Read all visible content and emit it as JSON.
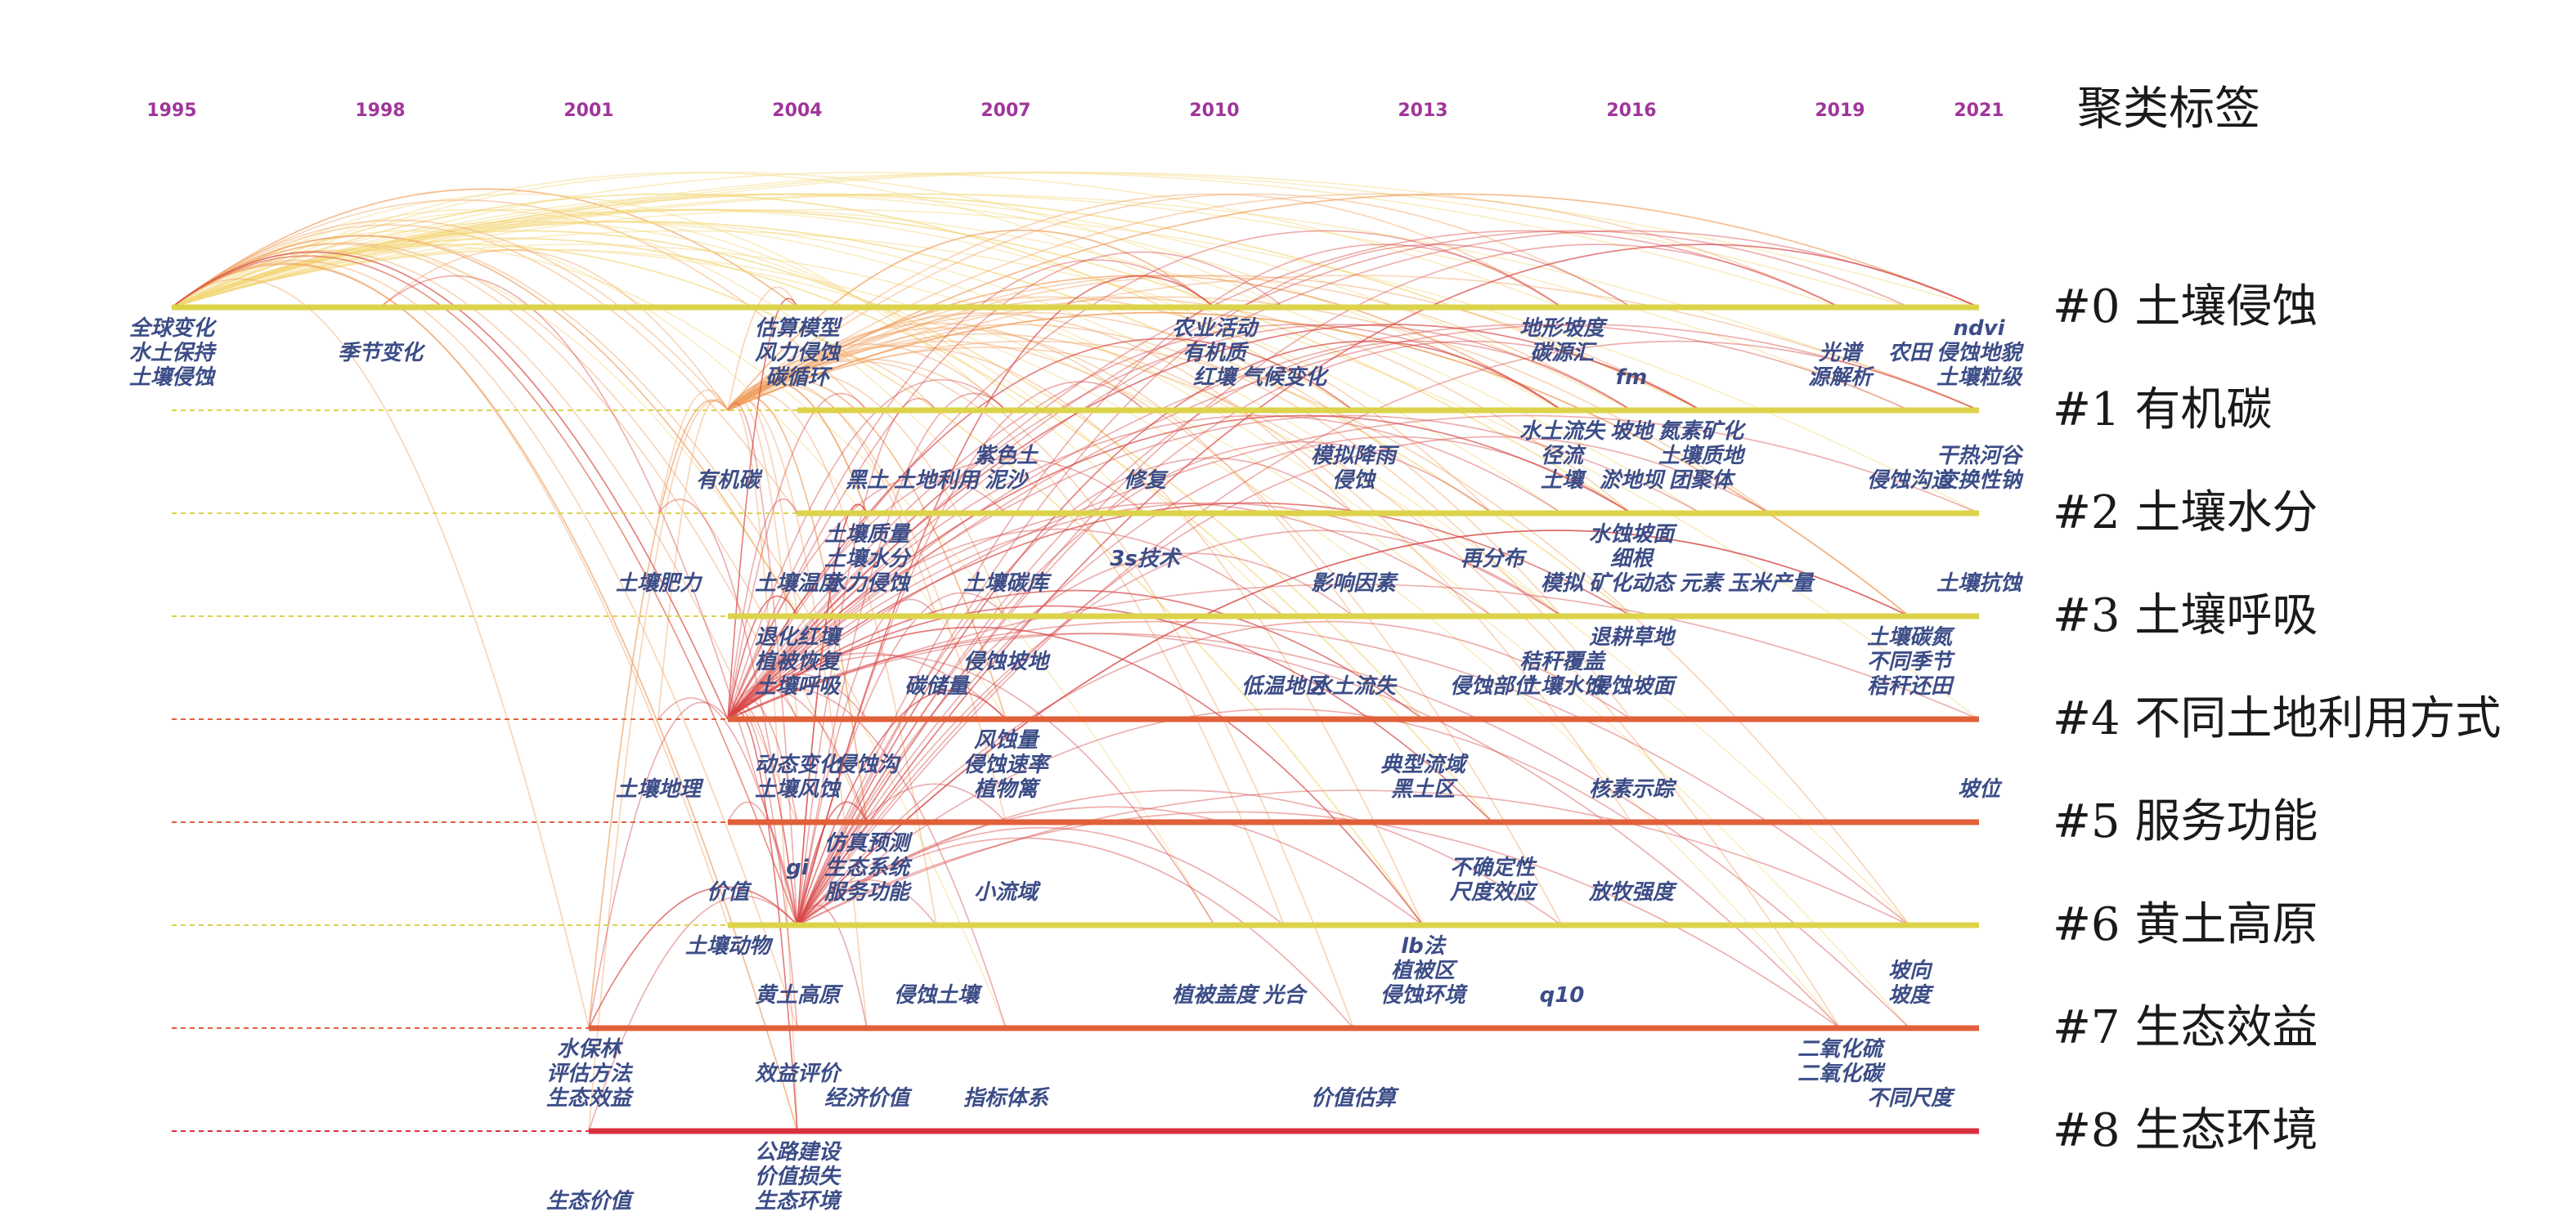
{
  "header": {
    "title": "聚类标签"
  },
  "years": [
    "1995",
    "1998",
    "2001",
    "2004",
    "2007",
    "2010",
    "2013",
    "2016",
    "2019",
    "2021"
  ],
  "colors": {
    "year_text": "#a0359b",
    "keyword_text": "#3c4d87",
    "yellow_band": "#dcd34a",
    "orange_band": "#e0603a",
    "red_band": "#d8313e",
    "arc_warm": "#f0a060",
    "arc_red": "#d84848",
    "arc_yellow": "#f3d77a"
  },
  "clusters": [
    {
      "label": "#0 土壤侵蚀",
      "color": "yellow",
      "start": "1995",
      "end": "2021",
      "keywords": [
        {
          "text": "全球变化",
          "year": "1995",
          "row": 0
        },
        {
          "text": "水土保持",
          "year": "1995",
          "row": 1
        },
        {
          "text": "土壤侵蚀",
          "year": "1995",
          "row": 2
        },
        {
          "text": "季节变化",
          "year": "1998",
          "row": 1
        },
        {
          "text": "估算模型",
          "year": "2004",
          "row": 0
        },
        {
          "text": "风力侵蚀",
          "year": "2004",
          "row": 1
        },
        {
          "text": "碳循环",
          "year": "2004",
          "row": 2
        },
        {
          "text": "农业活动",
          "year": "2010",
          "row": 0
        },
        {
          "text": "有机质",
          "year": "2010",
          "row": 1
        },
        {
          "text": "红壤",
          "year": "2010",
          "row": 2
        },
        {
          "text": "气候变化",
          "year": "2011",
          "row": 2
        },
        {
          "text": "地形坡度",
          "year": "2015",
          "row": 0
        },
        {
          "text": "碳源汇",
          "year": "2015",
          "row": 1
        },
        {
          "text": "fm",
          "year": "2016",
          "row": 2
        },
        {
          "text": "光谱",
          "year": "2019",
          "row": 1
        },
        {
          "text": "源解析",
          "year": "2019",
          "row": 2
        },
        {
          "text": "农田",
          "year": "2020",
          "row": 1
        },
        {
          "text": "ndvi",
          "year": "2021",
          "row": 0
        },
        {
          "text": "侵蚀地貌",
          "year": "2021",
          "row": 1
        },
        {
          "text": "土壤粒级",
          "year": "2021",
          "row": 2
        }
      ]
    },
    {
      "label": "#1 有机碳",
      "color": "yellow",
      "start": "2004",
      "end": "2021",
      "keywords": [
        {
          "text": "水土流失",
          "year": "2015",
          "row": 0
        },
        {
          "text": "坡地",
          "year": "2016",
          "row": 0
        },
        {
          "text": "氮素矿化",
          "year": "2017",
          "row": 0
        },
        {
          "text": "径流",
          "year": "2015",
          "row": 1
        },
        {
          "text": "土壤质地",
          "year": "2017",
          "row": 1
        },
        {
          "text": "紫色土",
          "year": "2007",
          "row": 1
        },
        {
          "text": "模拟降雨",
          "year": "2012",
          "row": 1
        },
        {
          "text": "有机碳",
          "year": "2003",
          "row": 2
        },
        {
          "text": "黑土",
          "year": "2005",
          "row": 2
        },
        {
          "text": "土地利用",
          "year": "2006",
          "row": 2
        },
        {
          "text": "泥沙",
          "year": "2007",
          "row": 2
        },
        {
          "text": "修复",
          "year": "2009",
          "row": 2
        },
        {
          "text": "侵蚀",
          "year": "2012",
          "row": 2
        },
        {
          "text": "土壤",
          "year": "2015",
          "row": 2
        },
        {
          "text": "淤地坝",
          "year": "2016",
          "row": 2
        },
        {
          "text": "团聚体",
          "year": "2017",
          "row": 2
        },
        {
          "text": "侵蚀沟道",
          "year": "2020",
          "row": 2
        },
        {
          "text": "干热河谷",
          "year": "2021",
          "row": 1
        },
        {
          "text": "交换性钠",
          "year": "2021",
          "row": 2
        }
      ]
    },
    {
      "label": "#2 土壤水分",
      "color": "yellow",
      "start": "2004",
      "end": "2021",
      "keywords": [
        {
          "text": "土壤质量",
          "year": "2005",
          "row": 0
        },
        {
          "text": "水蚀坡面",
          "year": "2016",
          "row": 0
        },
        {
          "text": "土壤水分",
          "year": "2005",
          "row": 1
        },
        {
          "text": "3s技术",
          "year": "2009",
          "row": 1
        },
        {
          "text": "再分布",
          "year": "2014",
          "row": 1
        },
        {
          "text": "细根",
          "year": "2016",
          "row": 1
        },
        {
          "text": "土壤肥力",
          "year": "2002",
          "row": 2
        },
        {
          "text": "土壤温度",
          "year": "2004",
          "row": 2
        },
        {
          "text": "水力侵蚀",
          "year": "2005",
          "row": 2
        },
        {
          "text": "土壤碳库",
          "year": "2007",
          "row": 2
        },
        {
          "text": "影响因素",
          "year": "2012",
          "row": 2
        },
        {
          "text": "模拟",
          "year": "2015",
          "row": 2
        },
        {
          "text": "矿化动态",
          "year": "2016",
          "row": 2
        },
        {
          "text": "元素",
          "year": "2017",
          "row": 2
        },
        {
          "text": "玉米产量",
          "year": "2018",
          "row": 2
        },
        {
          "text": "土壤抗蚀",
          "year": "2021",
          "row": 2
        }
      ]
    },
    {
      "label": "#3 土壤呼吸",
      "color": "yellow",
      "start": "2003",
      "end": "2021",
      "keywords": [
        {
          "text": "退化红壤",
          "year": "2004",
          "row": 0
        },
        {
          "text": "退耕草地",
          "year": "2016",
          "row": 0
        },
        {
          "text": "土壤碳氮",
          "year": "2020",
          "row": 0
        },
        {
          "text": "植被恢复",
          "year": "2004",
          "row": 1
        },
        {
          "text": "侵蚀坡地",
          "year": "2007",
          "row": 1
        },
        {
          "text": "秸秆覆盖",
          "year": "2015",
          "row": 1
        },
        {
          "text": "不同季节",
          "year": "2020",
          "row": 1
        },
        {
          "text": "土壤呼吸",
          "year": "2004",
          "row": 2
        },
        {
          "text": "碳储量",
          "year": "2006",
          "row": 2
        },
        {
          "text": "低温地区",
          "year": "2011",
          "row": 2
        },
        {
          "text": "水土流失",
          "year": "2012",
          "row": 2
        },
        {
          "text": "侵蚀部位",
          "year": "2014",
          "row": 2
        },
        {
          "text": "土壤水蚀",
          "year": "2015",
          "row": 2
        },
        {
          "text": "侵蚀坡面",
          "year": "2016",
          "row": 2
        },
        {
          "text": "秸秆还田",
          "year": "2020",
          "row": 2
        }
      ]
    },
    {
      "label": "#4 不同土地利用方式",
      "color": "orange",
      "start": "2003",
      "end": "2021",
      "keywords": [
        {
          "text": "风蚀量",
          "year": "2007",
          "row": 0
        },
        {
          "text": "动态变化",
          "year": "2004",
          "row": 1
        },
        {
          "text": "侵蚀沟",
          "year": "2005",
          "row": 1
        },
        {
          "text": "侵蚀速率",
          "year": "2007",
          "row": 1
        },
        {
          "text": "典型流域",
          "year": "2013",
          "row": 1
        },
        {
          "text": "土壤地理",
          "year": "2002",
          "row": 2
        },
        {
          "text": "土壤风蚀",
          "year": "2004",
          "row": 2
        },
        {
          "text": "植物篱",
          "year": "2007",
          "row": 2
        },
        {
          "text": "黑土区",
          "year": "2013",
          "row": 2
        },
        {
          "text": "核素示踪",
          "year": "2016",
          "row": 2
        },
        {
          "text": "坡位",
          "year": "2021",
          "row": 2
        }
      ]
    },
    {
      "label": "#5 服务功能",
      "color": "orange",
      "start": "2003",
      "end": "2021",
      "keywords": [
        {
          "text": "仿真预测",
          "year": "2005",
          "row": 0
        },
        {
          "text": "gi",
          "year": "2004",
          "row": 1
        },
        {
          "text": "生态系统",
          "year": "2005",
          "row": 1
        },
        {
          "text": "不确定性",
          "year": "2014",
          "row": 1
        },
        {
          "text": "价值",
          "year": "2003",
          "row": 2
        },
        {
          "text": "服务功能",
          "year": "2005",
          "row": 2
        },
        {
          "text": "小流域",
          "year": "2007",
          "row": 2
        },
        {
          "text": "尺度效应",
          "year": "2014",
          "row": 2
        },
        {
          "text": "放牧强度",
          "year": "2016",
          "row": 2
        }
      ]
    },
    {
      "label": "#6 黄土高原",
      "color": "yellow",
      "start": "2003",
      "end": "2021",
      "keywords": [
        {
          "text": "土壤动物",
          "year": "2003",
          "row": 0
        },
        {
          "text": "lb法",
          "year": "2013",
          "row": 0
        },
        {
          "text": "植被区",
          "year": "2013",
          "row": 1
        },
        {
          "text": "坡向",
          "year": "2020",
          "row": 1
        },
        {
          "text": "黄土高原",
          "year": "2004",
          "row": 2
        },
        {
          "text": "侵蚀土壤",
          "year": "2006",
          "row": 2
        },
        {
          "text": "植被盖度",
          "year": "2010",
          "row": 2
        },
        {
          "text": "光合",
          "year": "2011",
          "row": 2
        },
        {
          "text": "侵蚀环境",
          "year": "2013",
          "row": 2
        },
        {
          "text": "q10",
          "year": "2015",
          "row": 2
        },
        {
          "text": "坡度",
          "year": "2020",
          "row": 2
        }
      ]
    },
    {
      "label": "#7 生态效益",
      "color": "orange",
      "start": "2001",
      "end": "2021",
      "keywords": [
        {
          "text": "水保林",
          "year": "2001",
          "row": 0
        },
        {
          "text": "二氧化硫",
          "year": "2019",
          "row": 0
        },
        {
          "text": "评估方法",
          "year": "2001",
          "row": 1
        },
        {
          "text": "效益评价",
          "year": "2004",
          "row": 1
        },
        {
          "text": "二氧化碳",
          "year": "2019",
          "row": 1
        },
        {
          "text": "生态效益",
          "year": "2001",
          "row": 2
        },
        {
          "text": "经济价值",
          "year": "2005",
          "row": 2
        },
        {
          "text": "指标体系",
          "year": "2007",
          "row": 2
        },
        {
          "text": "价值估算",
          "year": "2012",
          "row": 2
        },
        {
          "text": "不同尺度",
          "year": "2020",
          "row": 2
        }
      ]
    },
    {
      "label": "#8 生态环境",
      "color": "red",
      "start": "2001",
      "end": "2021",
      "keywords": [
        {
          "text": "公路建设",
          "year": "2004",
          "row": 0
        },
        {
          "text": "价值损失",
          "year": "2004",
          "row": 1
        },
        {
          "text": "生态价值",
          "year": "2001",
          "row": 2
        },
        {
          "text": "生态环境",
          "year": "2004",
          "row": 2
        }
      ]
    }
  ]
}
